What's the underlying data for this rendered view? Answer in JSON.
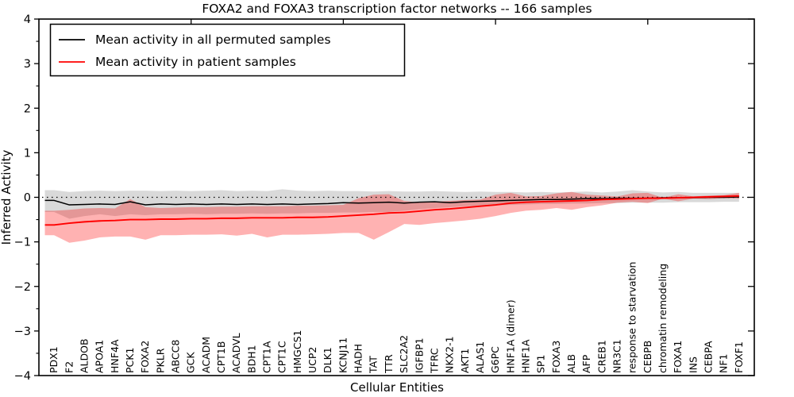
{
  "chart_data": {
    "type": "line",
    "title": "FOXA2 and FOXA3 transcription factor networks -- 166 samples",
    "xlabel": "Cellular Entities",
    "ylabel": "Inferred Activity",
    "ylim": [
      -4,
      4
    ],
    "yticks": [
      4,
      3,
      2,
      1,
      0,
      -1,
      -2,
      -3,
      -4
    ],
    "minor_ytick_step": 0.5,
    "top_tick_indices": [
      9,
      19,
      29,
      39
    ],
    "zero_line": true,
    "grid": false,
    "legend_position": "upper left",
    "categories": [
      "PDX1",
      "F2",
      "ALDOB",
      "APOA1",
      "HNF4A",
      "PCK1",
      "FOXA2",
      "PKLR",
      "ABCC8",
      "GCK",
      "ACADM",
      "CPT1B",
      "ACADVL",
      "BDH1",
      "CPT1A",
      "CPT1C",
      "HMGCS1",
      "UCP2",
      "DLK1",
      "KCNJ11",
      "HADH",
      "TAT",
      "TTR",
      "SLC2A2",
      "IGFBP1",
      "TFRC",
      "NKX2-1",
      "AKT1",
      "ALAS1",
      "G6PC",
      "HNF1A (dimer)",
      "HNF1A",
      "SP1",
      "FOXA3",
      "ALB",
      "AFP",
      "CREB1",
      "NR3C1",
      "response to starvation",
      "CEBPB",
      "chromatin remodeling",
      "FOXA1",
      "INS",
      "CEBPA",
      "NF1",
      "FOXF1"
    ],
    "series": [
      {
        "id": "permuted",
        "name": "Mean activity in all permuted samples",
        "color": "#000000",
        "values": [
          -0.07,
          -0.17,
          -0.16,
          -0.15,
          -0.16,
          -0.1,
          -0.17,
          -0.15,
          -0.16,
          -0.15,
          -0.16,
          -0.15,
          -0.16,
          -0.15,
          -0.16,
          -0.15,
          -0.16,
          -0.15,
          -0.14,
          -0.12,
          -0.13,
          -0.12,
          -0.11,
          -0.13,
          -0.11,
          -0.1,
          -0.12,
          -0.1,
          -0.09,
          -0.08,
          -0.07,
          -0.06,
          -0.05,
          -0.05,
          -0.04,
          -0.03,
          -0.03,
          -0.02,
          -0.02,
          -0.02,
          -0.01,
          -0.01,
          -0.01,
          0.0,
          0.0,
          0.01
        ]
      },
      {
        "id": "patient",
        "name": "Mean activity in patient samples",
        "color": "#ff0000",
        "values": [
          -0.62,
          -0.58,
          -0.55,
          -0.53,
          -0.52,
          -0.5,
          -0.5,
          -0.49,
          -0.49,
          -0.48,
          -0.48,
          -0.47,
          -0.47,
          -0.46,
          -0.46,
          -0.46,
          -0.45,
          -0.45,
          -0.44,
          -0.42,
          -0.4,
          -0.38,
          -0.35,
          -0.34,
          -0.31,
          -0.28,
          -0.26,
          -0.23,
          -0.2,
          -0.17,
          -0.13,
          -0.11,
          -0.1,
          -0.09,
          -0.08,
          -0.07,
          -0.05,
          -0.04,
          -0.03,
          -0.02,
          -0.02,
          -0.01,
          0.0,
          0.01,
          0.02,
          0.03
        ]
      }
    ],
    "bands": [
      {
        "id": "permuted-range",
        "name": "Permuted samples activity range",
        "color": "rgba(0,0,0,0.15)",
        "upper": [
          0.16,
          0.12,
          0.14,
          0.15,
          0.14,
          0.15,
          0.15,
          0.14,
          0.15,
          0.14,
          0.15,
          0.16,
          0.14,
          0.15,
          0.14,
          0.18,
          0.15,
          0.14,
          0.15,
          0.14,
          0.14,
          0.13,
          0.14,
          0.13,
          0.13,
          0.14,
          0.13,
          0.12,
          0.13,
          0.12,
          0.12,
          0.11,
          0.12,
          0.11,
          0.12,
          0.13,
          0.11,
          0.13,
          0.16,
          0.13,
          0.11,
          0.12,
          0.1,
          0.1,
          0.1,
          0.1
        ],
        "lower": [
          -0.33,
          -0.48,
          -0.42,
          -0.38,
          -0.42,
          -0.38,
          -0.4,
          -0.38,
          -0.38,
          -0.37,
          -0.38,
          -0.37,
          -0.37,
          -0.36,
          -0.37,
          -0.36,
          -0.36,
          -0.35,
          -0.35,
          -0.34,
          -0.34,
          -0.33,
          -0.33,
          -0.3,
          -0.27,
          -0.24,
          -0.22,
          -0.2,
          -0.19,
          -0.18,
          -0.17,
          -0.16,
          -0.15,
          -0.15,
          -0.14,
          -0.14,
          -0.13,
          -0.13,
          -0.12,
          -0.12,
          -0.12,
          -0.11,
          -0.11,
          -0.11,
          -0.1,
          -0.1
        ]
      },
      {
        "id": "patient-range",
        "name": "Patient samples activity range",
        "color": "rgba(255,0,0,0.30)",
        "upper": [
          -0.3,
          -0.28,
          -0.25,
          -0.24,
          -0.25,
          -0.04,
          -0.22,
          -0.24,
          -0.23,
          -0.22,
          -0.22,
          -0.21,
          -0.21,
          -0.2,
          -0.2,
          -0.2,
          -0.19,
          -0.19,
          -0.18,
          -0.17,
          -0.02,
          0.06,
          0.07,
          -0.08,
          -0.12,
          -0.1,
          -0.08,
          -0.06,
          -0.05,
          0.06,
          0.1,
          0.02,
          0.03,
          0.09,
          0.12,
          0.06,
          0.04,
          0.02,
          0.09,
          0.1,
          -0.01,
          0.07,
          0.02,
          0.04,
          0.05,
          0.1
        ],
        "lower": [
          -0.85,
          -1.02,
          -0.97,
          -0.9,
          -0.88,
          -0.88,
          -0.95,
          -0.85,
          -0.85,
          -0.84,
          -0.84,
          -0.83,
          -0.86,
          -0.82,
          -0.9,
          -0.84,
          -0.84,
          -0.83,
          -0.82,
          -0.8,
          -0.8,
          -0.95,
          -0.78,
          -0.6,
          -0.62,
          -0.58,
          -0.55,
          -0.52,
          -0.48,
          -0.42,
          -0.35,
          -0.3,
          -0.28,
          -0.24,
          -0.28,
          -0.22,
          -0.18,
          -0.12,
          -0.1,
          -0.13,
          -0.03,
          -0.09,
          -0.03,
          -0.04,
          -0.02,
          -0.03
        ]
      }
    ]
  },
  "colors": {
    "zero_line": "#000000",
    "frame": "#000000",
    "background": "#ffffff"
  }
}
